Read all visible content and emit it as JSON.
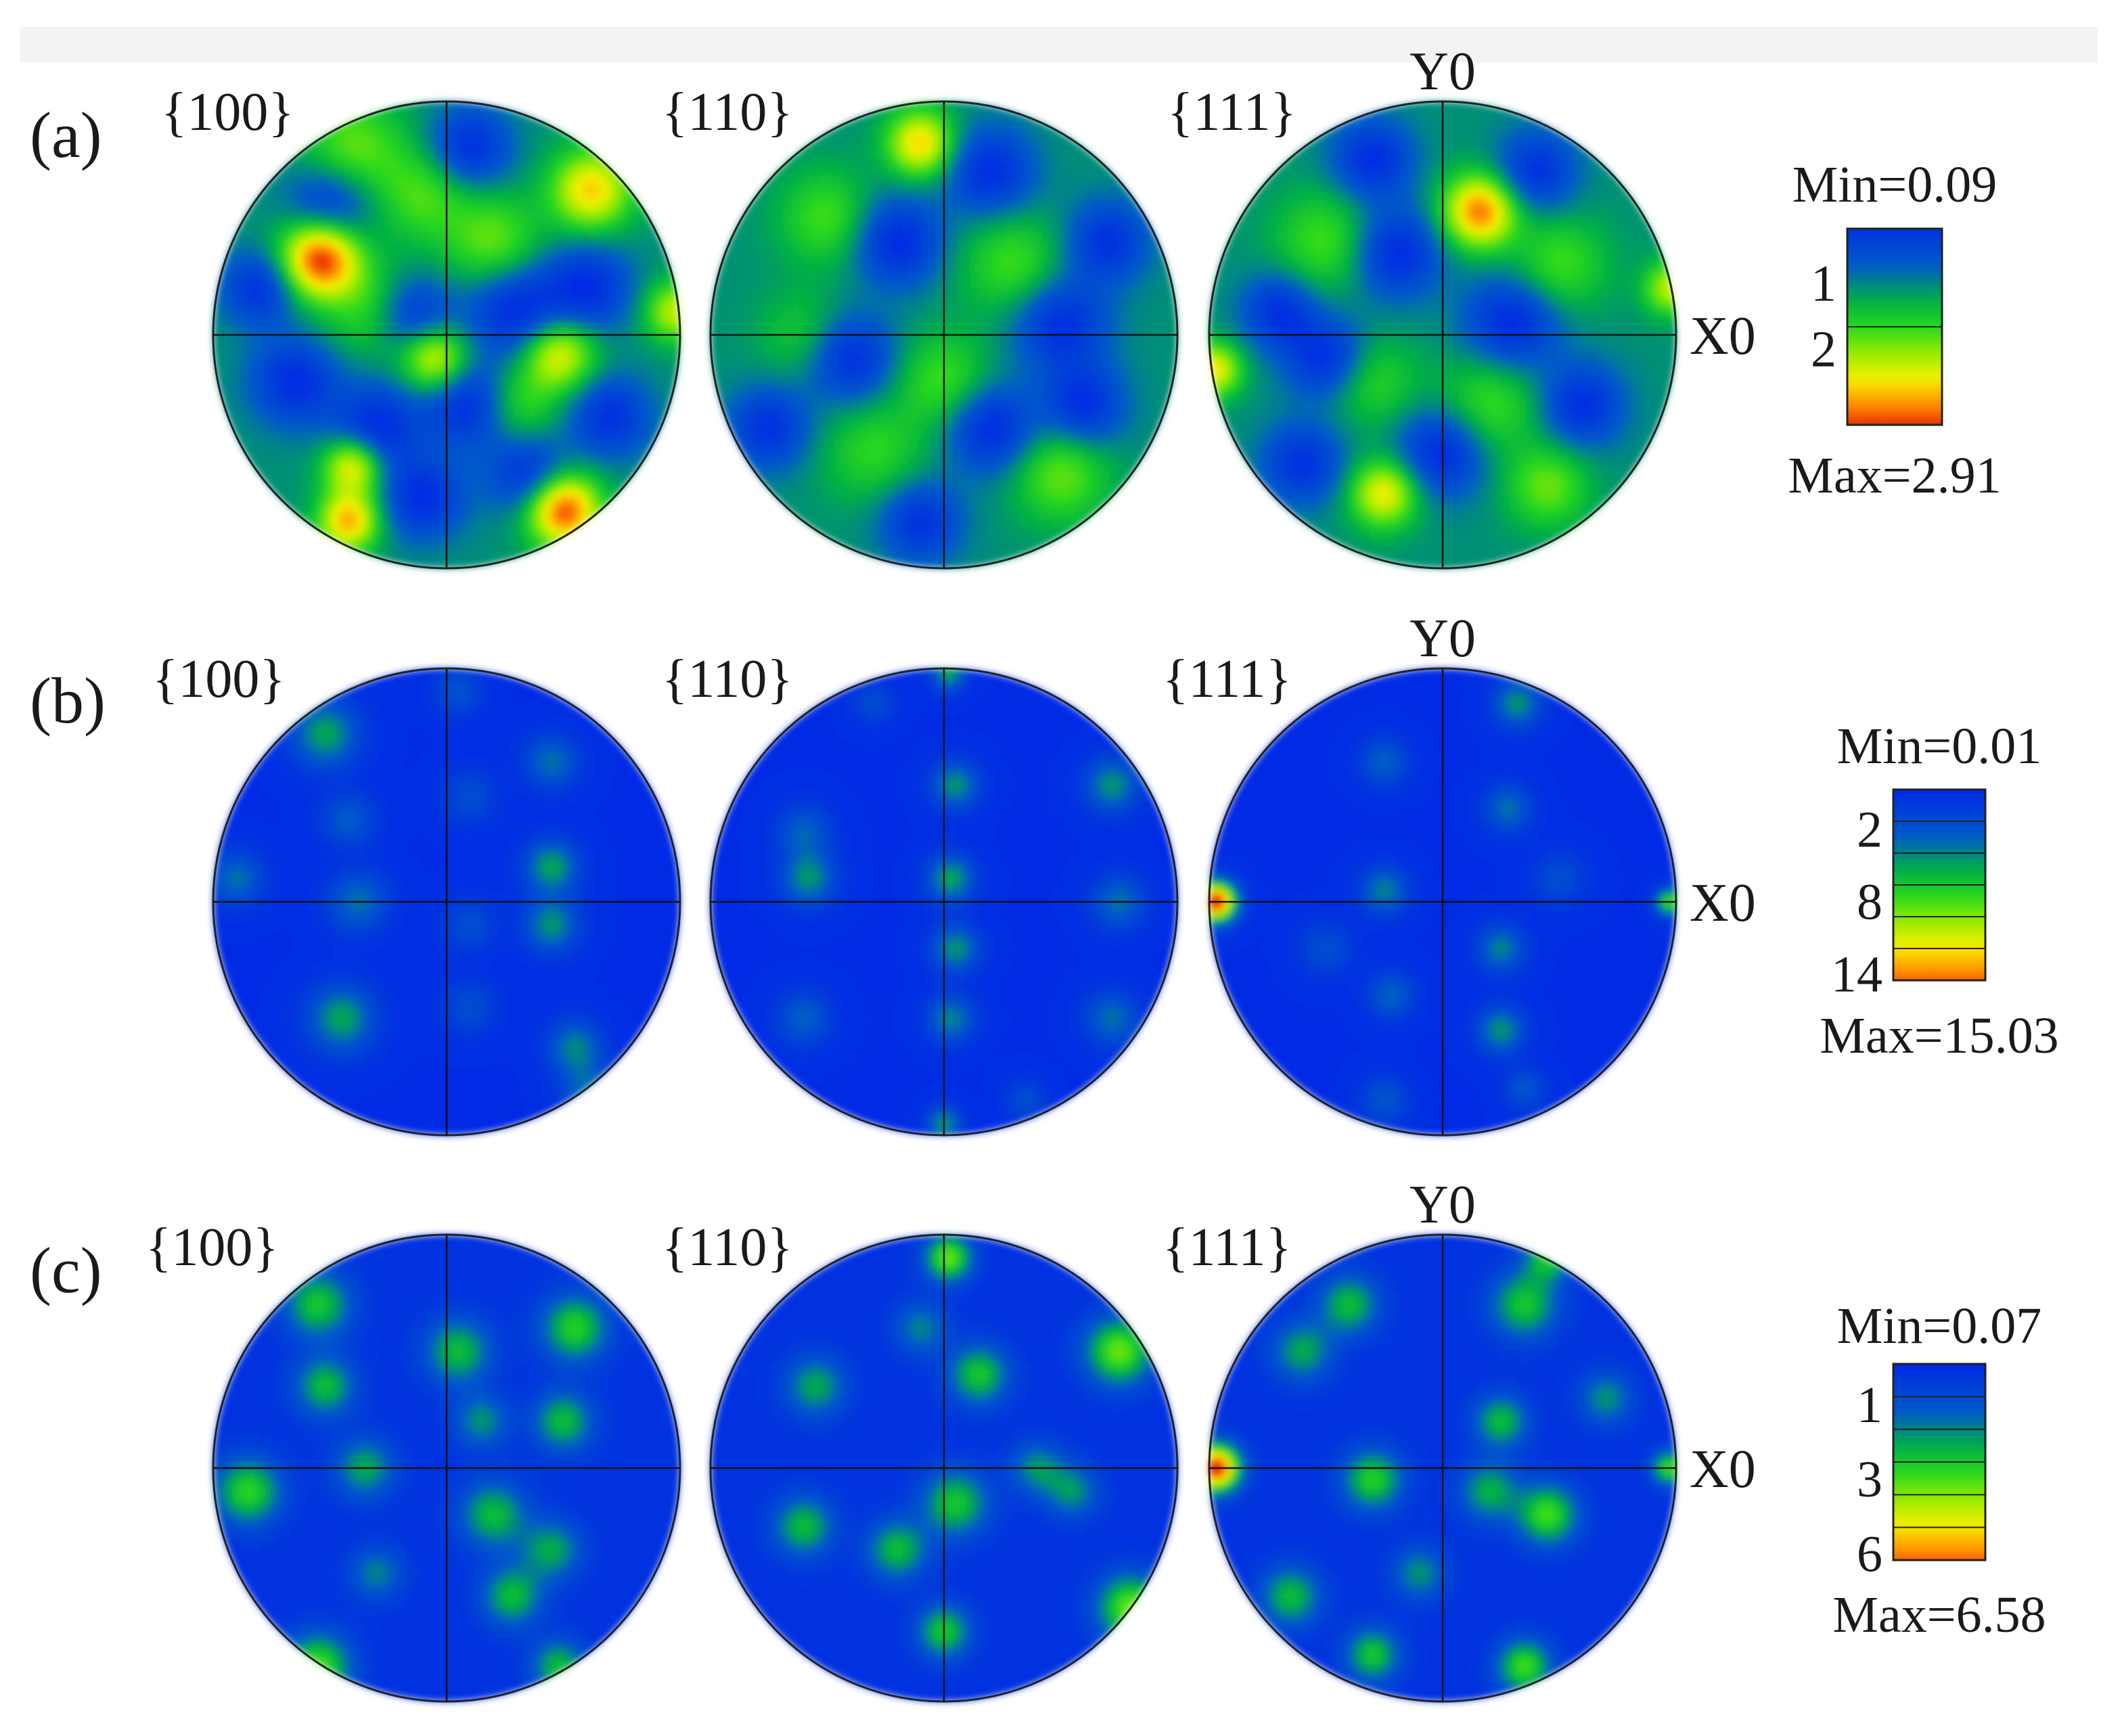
{
  "chart_data": [
    {
      "type": "heatmap",
      "panel": "(a)",
      "pole_figures": [
        "{100}",
        "{110}",
        "{111}"
      ],
      "axis_labels": {
        "x": "X0",
        "y": "Y0"
      },
      "colorbar": {
        "min_label": "Min=0.09",
        "max_label": "Max=2.91",
        "ticks": [
          "1",
          "2"
        ],
        "min": 0.09,
        "max": 2.91
      },
      "background_level": 1.0,
      "spots": [
        [
          [
            -0.54,
            0.33,
            0.12,
            2.9
          ],
          [
            0.62,
            0.62,
            0.12,
            2.3
          ],
          [
            -0.05,
            -0.1,
            0.1,
            2.2
          ],
          [
            0.48,
            -0.08,
            0.11,
            2.2
          ],
          [
            -0.4,
            -0.56,
            0.09,
            2.3
          ],
          [
            -0.42,
            -0.8,
            0.09,
            2.4
          ],
          [
            0.5,
            -0.75,
            0.11,
            2.8
          ],
          [
            0.98,
            0.1,
            0.09,
            2.0
          ],
          [
            -0.4,
            0.8,
            0.15,
            1.7
          ],
          [
            0.2,
            0.4,
            0.14,
            1.7
          ],
          [
            -0.3,
            0.1,
            0.14,
            1.6
          ],
          [
            0.3,
            -0.3,
            0.12,
            1.6
          ],
          [
            -0.1,
            0.6,
            0.14,
            1.6
          ],
          [
            -0.15,
            0.08,
            0.12,
            0.1
          ],
          [
            0.3,
            0.1,
            0.14,
            0.1
          ],
          [
            -0.3,
            -0.4,
            0.13,
            0.1
          ],
          [
            0.1,
            -0.3,
            0.13,
            0.1
          ],
          [
            0.6,
            0.2,
            0.13,
            0.15
          ],
          [
            -0.65,
            -0.2,
            0.13,
            0.15
          ],
          [
            0.1,
            0.8,
            0.12,
            0.15
          ],
          [
            -0.5,
            0.55,
            0.13,
            0.2
          ],
          [
            0.35,
            -0.6,
            0.12,
            0.2
          ],
          [
            -0.1,
            -0.7,
            0.12,
            0.15
          ],
          [
            0.7,
            -0.35,
            0.12,
            0.2
          ],
          [
            -0.8,
            0.2,
            0.11,
            0.2
          ]
        ],
        [
          [
            -0.1,
            0.82,
            0.1,
            2.3
          ],
          [
            -0.5,
            0.5,
            0.14,
            1.6
          ],
          [
            0.3,
            0.3,
            0.15,
            1.6
          ],
          [
            -0.3,
            -0.5,
            0.15,
            1.5
          ],
          [
            0.5,
            -0.6,
            0.14,
            1.7
          ],
          [
            0.0,
            -0.2,
            0.14,
            1.6
          ],
          [
            -0.6,
            0.0,
            0.13,
            1.4
          ],
          [
            0.2,
            0.7,
            0.13,
            0.15
          ],
          [
            -0.2,
            0.4,
            0.13,
            0.1
          ],
          [
            0.5,
            0.05,
            0.14,
            0.15
          ],
          [
            -0.4,
            -0.1,
            0.13,
            0.15
          ],
          [
            0.2,
            -0.4,
            0.13,
            0.1
          ],
          [
            -0.1,
            -0.8,
            0.12,
            0.2
          ],
          [
            0.7,
            0.4,
            0.12,
            0.2
          ],
          [
            -0.75,
            -0.4,
            0.12,
            0.2
          ],
          [
            0.6,
            -0.3,
            0.12,
            0.15
          ]
        ],
        [
          [
            0.16,
            0.53,
            0.11,
            2.6
          ],
          [
            -0.98,
            -0.15,
            0.08,
            2.2
          ],
          [
            -0.25,
            -0.68,
            0.1,
            2.2
          ],
          [
            0.98,
            0.2,
            0.08,
            2.0
          ],
          [
            -0.5,
            0.4,
            0.15,
            1.6
          ],
          [
            0.5,
            0.3,
            0.14,
            1.6
          ],
          [
            0.2,
            -0.3,
            0.15,
            1.6
          ],
          [
            -0.3,
            -0.2,
            0.13,
            1.5
          ],
          [
            0.45,
            -0.65,
            0.12,
            1.7
          ],
          [
            -0.2,
            0.35,
            0.13,
            0.1
          ],
          [
            0.3,
            0.05,
            0.14,
            0.1
          ],
          [
            -0.5,
            -0.1,
            0.12,
            0.15
          ],
          [
            0.0,
            -0.5,
            0.13,
            0.1
          ],
          [
            0.6,
            -0.3,
            0.12,
            0.15
          ],
          [
            -0.7,
            0.1,
            0.11,
            0.2
          ],
          [
            0.4,
            0.7,
            0.12,
            0.2
          ],
          [
            -0.3,
            0.75,
            0.12,
            0.15
          ],
          [
            -0.6,
            -0.55,
            0.12,
            0.2
          ]
        ]
      ]
    },
    {
      "type": "heatmap",
      "panel": "(b)",
      "pole_figures": [
        "{100}",
        "{110}",
        "{111}"
      ],
      "axis_labels": {
        "x": "X0",
        "y": "Y0"
      },
      "colorbar": {
        "min_label": "Min=0.01",
        "max_label": "Max=15.03",
        "ticks": [
          "2",
          "8",
          "14"
        ],
        "min": 0.01,
        "max": 15.03
      },
      "background_level": 0.3,
      "spots": [
        [
          [
            -0.52,
            0.72,
            0.1,
            5.5
          ],
          [
            -0.42,
            0.35,
            0.08,
            3.2
          ],
          [
            -0.38,
            0.0,
            0.09,
            4.0
          ],
          [
            -0.45,
            -0.5,
            0.1,
            5.5
          ],
          [
            0.45,
            0.6,
            0.08,
            4.0
          ],
          [
            0.45,
            0.15,
            0.08,
            5.5
          ],
          [
            0.45,
            -0.1,
            0.08,
            5.0
          ],
          [
            0.55,
            -0.62,
            0.08,
            4.5
          ],
          [
            0.6,
            -0.8,
            0.08,
            3.5
          ],
          [
            -0.9,
            0.1,
            0.08,
            4.0
          ],
          [
            0.1,
            0.45,
            0.08,
            2.5
          ],
          [
            0.1,
            -0.1,
            0.08,
            2.5
          ],
          [
            0.1,
            -0.45,
            0.08,
            2.5
          ],
          [
            0.05,
            0.9,
            0.07,
            2.8
          ]
        ],
        [
          [
            -0.6,
            0.3,
            0.08,
            3.5
          ],
          [
            -0.58,
            0.1,
            0.08,
            5.0
          ],
          [
            -0.6,
            -0.5,
            0.08,
            3.5
          ],
          [
            0.02,
            0.98,
            0.05,
            5.5
          ],
          [
            0.05,
            0.5,
            0.07,
            5.0
          ],
          [
            0.03,
            0.1,
            0.07,
            5.5
          ],
          [
            0.05,
            -0.2,
            0.07,
            5.0
          ],
          [
            0.03,
            -0.5,
            0.07,
            4.5
          ],
          [
            0.0,
            -0.95,
            0.05,
            5.0
          ],
          [
            0.72,
            0.5,
            0.08,
            5.0
          ],
          [
            0.75,
            0.0,
            0.08,
            4.0
          ],
          [
            0.72,
            -0.5,
            0.08,
            4.0
          ],
          [
            -0.3,
            0.85,
            0.06,
            2.5
          ],
          [
            0.35,
            -0.85,
            0.06,
            2.5
          ]
        ],
        [
          [
            -0.97,
            0.0,
            0.06,
            15.0
          ],
          [
            0.97,
            0.0,
            0.04,
            8.0
          ],
          [
            -0.25,
            0.6,
            0.07,
            3.5
          ],
          [
            -0.25,
            0.05,
            0.07,
            4.5
          ],
          [
            -0.22,
            -0.4,
            0.07,
            3.5
          ],
          [
            -0.25,
            -0.85,
            0.07,
            3.0
          ],
          [
            0.32,
            0.85,
            0.07,
            5.0
          ],
          [
            0.28,
            0.4,
            0.07,
            4.0
          ],
          [
            0.25,
            -0.2,
            0.07,
            4.5
          ],
          [
            0.25,
            -0.55,
            0.07,
            5.0
          ],
          [
            0.35,
            -0.8,
            0.06,
            3.0
          ],
          [
            0.5,
            0.1,
            0.08,
            2.5
          ],
          [
            -0.5,
            -0.2,
            0.08,
            2.5
          ]
        ]
      ]
    },
    {
      "type": "heatmap",
      "panel": "(c)",
      "pole_figures": [
        "{100}",
        "{110}",
        "{111}"
      ],
      "axis_labels": {
        "x": "X0",
        "y": "Y0"
      },
      "colorbar": {
        "min_label": "Min=0.07",
        "max_label": "Max=6.58",
        "ticks": [
          "1",
          "3",
          "6"
        ],
        "min": 0.07,
        "max": 6.58
      },
      "background_level": 0.35,
      "spots": [
        [
          [
            -0.85,
            0.85,
            0.08,
            2.5
          ],
          [
            -0.55,
            0.7,
            0.1,
            3.0
          ],
          [
            -0.52,
            0.35,
            0.09,
            2.8
          ],
          [
            -0.35,
            0.0,
            0.09,
            2.5
          ],
          [
            -0.55,
            -0.85,
            0.1,
            3.5
          ],
          [
            -0.85,
            -0.1,
            0.1,
            3.3
          ],
          [
            0.05,
            0.5,
            0.1,
            2.8
          ],
          [
            0.15,
            0.2,
            0.08,
            2.2
          ],
          [
            0.2,
            -0.2,
            0.1,
            2.8
          ],
          [
            0.28,
            -0.55,
            0.09,
            2.8
          ],
          [
            0.55,
            0.6,
            0.1,
            3.2
          ],
          [
            0.5,
            0.2,
            0.09,
            2.8
          ],
          [
            0.45,
            -0.35,
            0.09,
            2.5
          ],
          [
            0.48,
            -0.85,
            0.08,
            2.8
          ],
          [
            -0.3,
            -0.45,
            0.08,
            2.0
          ]
        ],
        [
          [
            0.02,
            0.9,
            0.07,
            3.8
          ],
          [
            0.75,
            0.5,
            0.1,
            3.8
          ],
          [
            0.8,
            -0.6,
            0.1,
            3.8
          ],
          [
            0.15,
            0.4,
            0.09,
            3.0
          ],
          [
            0.05,
            -0.15,
            0.1,
            3.0
          ],
          [
            0.0,
            -0.7,
            0.08,
            3.0
          ],
          [
            -0.55,
            0.35,
            0.09,
            2.5
          ],
          [
            -0.6,
            -0.25,
            0.09,
            2.8
          ],
          [
            -0.2,
            -0.35,
            0.09,
            2.8
          ],
          [
            0.55,
            -0.1,
            0.08,
            2.2
          ],
          [
            -0.1,
            0.6,
            0.08,
            2.0
          ],
          [
            0.4,
            0.0,
            0.08,
            2.2
          ]
        ],
        [
          [
            -0.97,
            0.0,
            0.07,
            6.6
          ],
          [
            0.97,
            0.0,
            0.05,
            3.5
          ],
          [
            -0.3,
            -0.05,
            0.09,
            3.2
          ],
          [
            -0.6,
            0.5,
            0.09,
            2.5
          ],
          [
            -0.4,
            0.7,
            0.09,
            2.8
          ],
          [
            -0.65,
            -0.55,
            0.09,
            2.8
          ],
          [
            -0.3,
            -0.8,
            0.08,
            3.0
          ],
          [
            0.35,
            0.7,
            0.1,
            3.0
          ],
          [
            0.25,
            0.2,
            0.08,
            2.8
          ],
          [
            0.2,
            -0.1,
            0.09,
            2.6
          ],
          [
            0.45,
            -0.2,
            0.09,
            3.5
          ],
          [
            0.35,
            -0.85,
            0.08,
            3.5
          ],
          [
            0.45,
            0.9,
            0.07,
            2.8
          ],
          [
            0.7,
            0.3,
            0.08,
            2.2
          ],
          [
            -0.1,
            -0.45,
            0.08,
            2.2
          ]
        ]
      ]
    }
  ]
}
